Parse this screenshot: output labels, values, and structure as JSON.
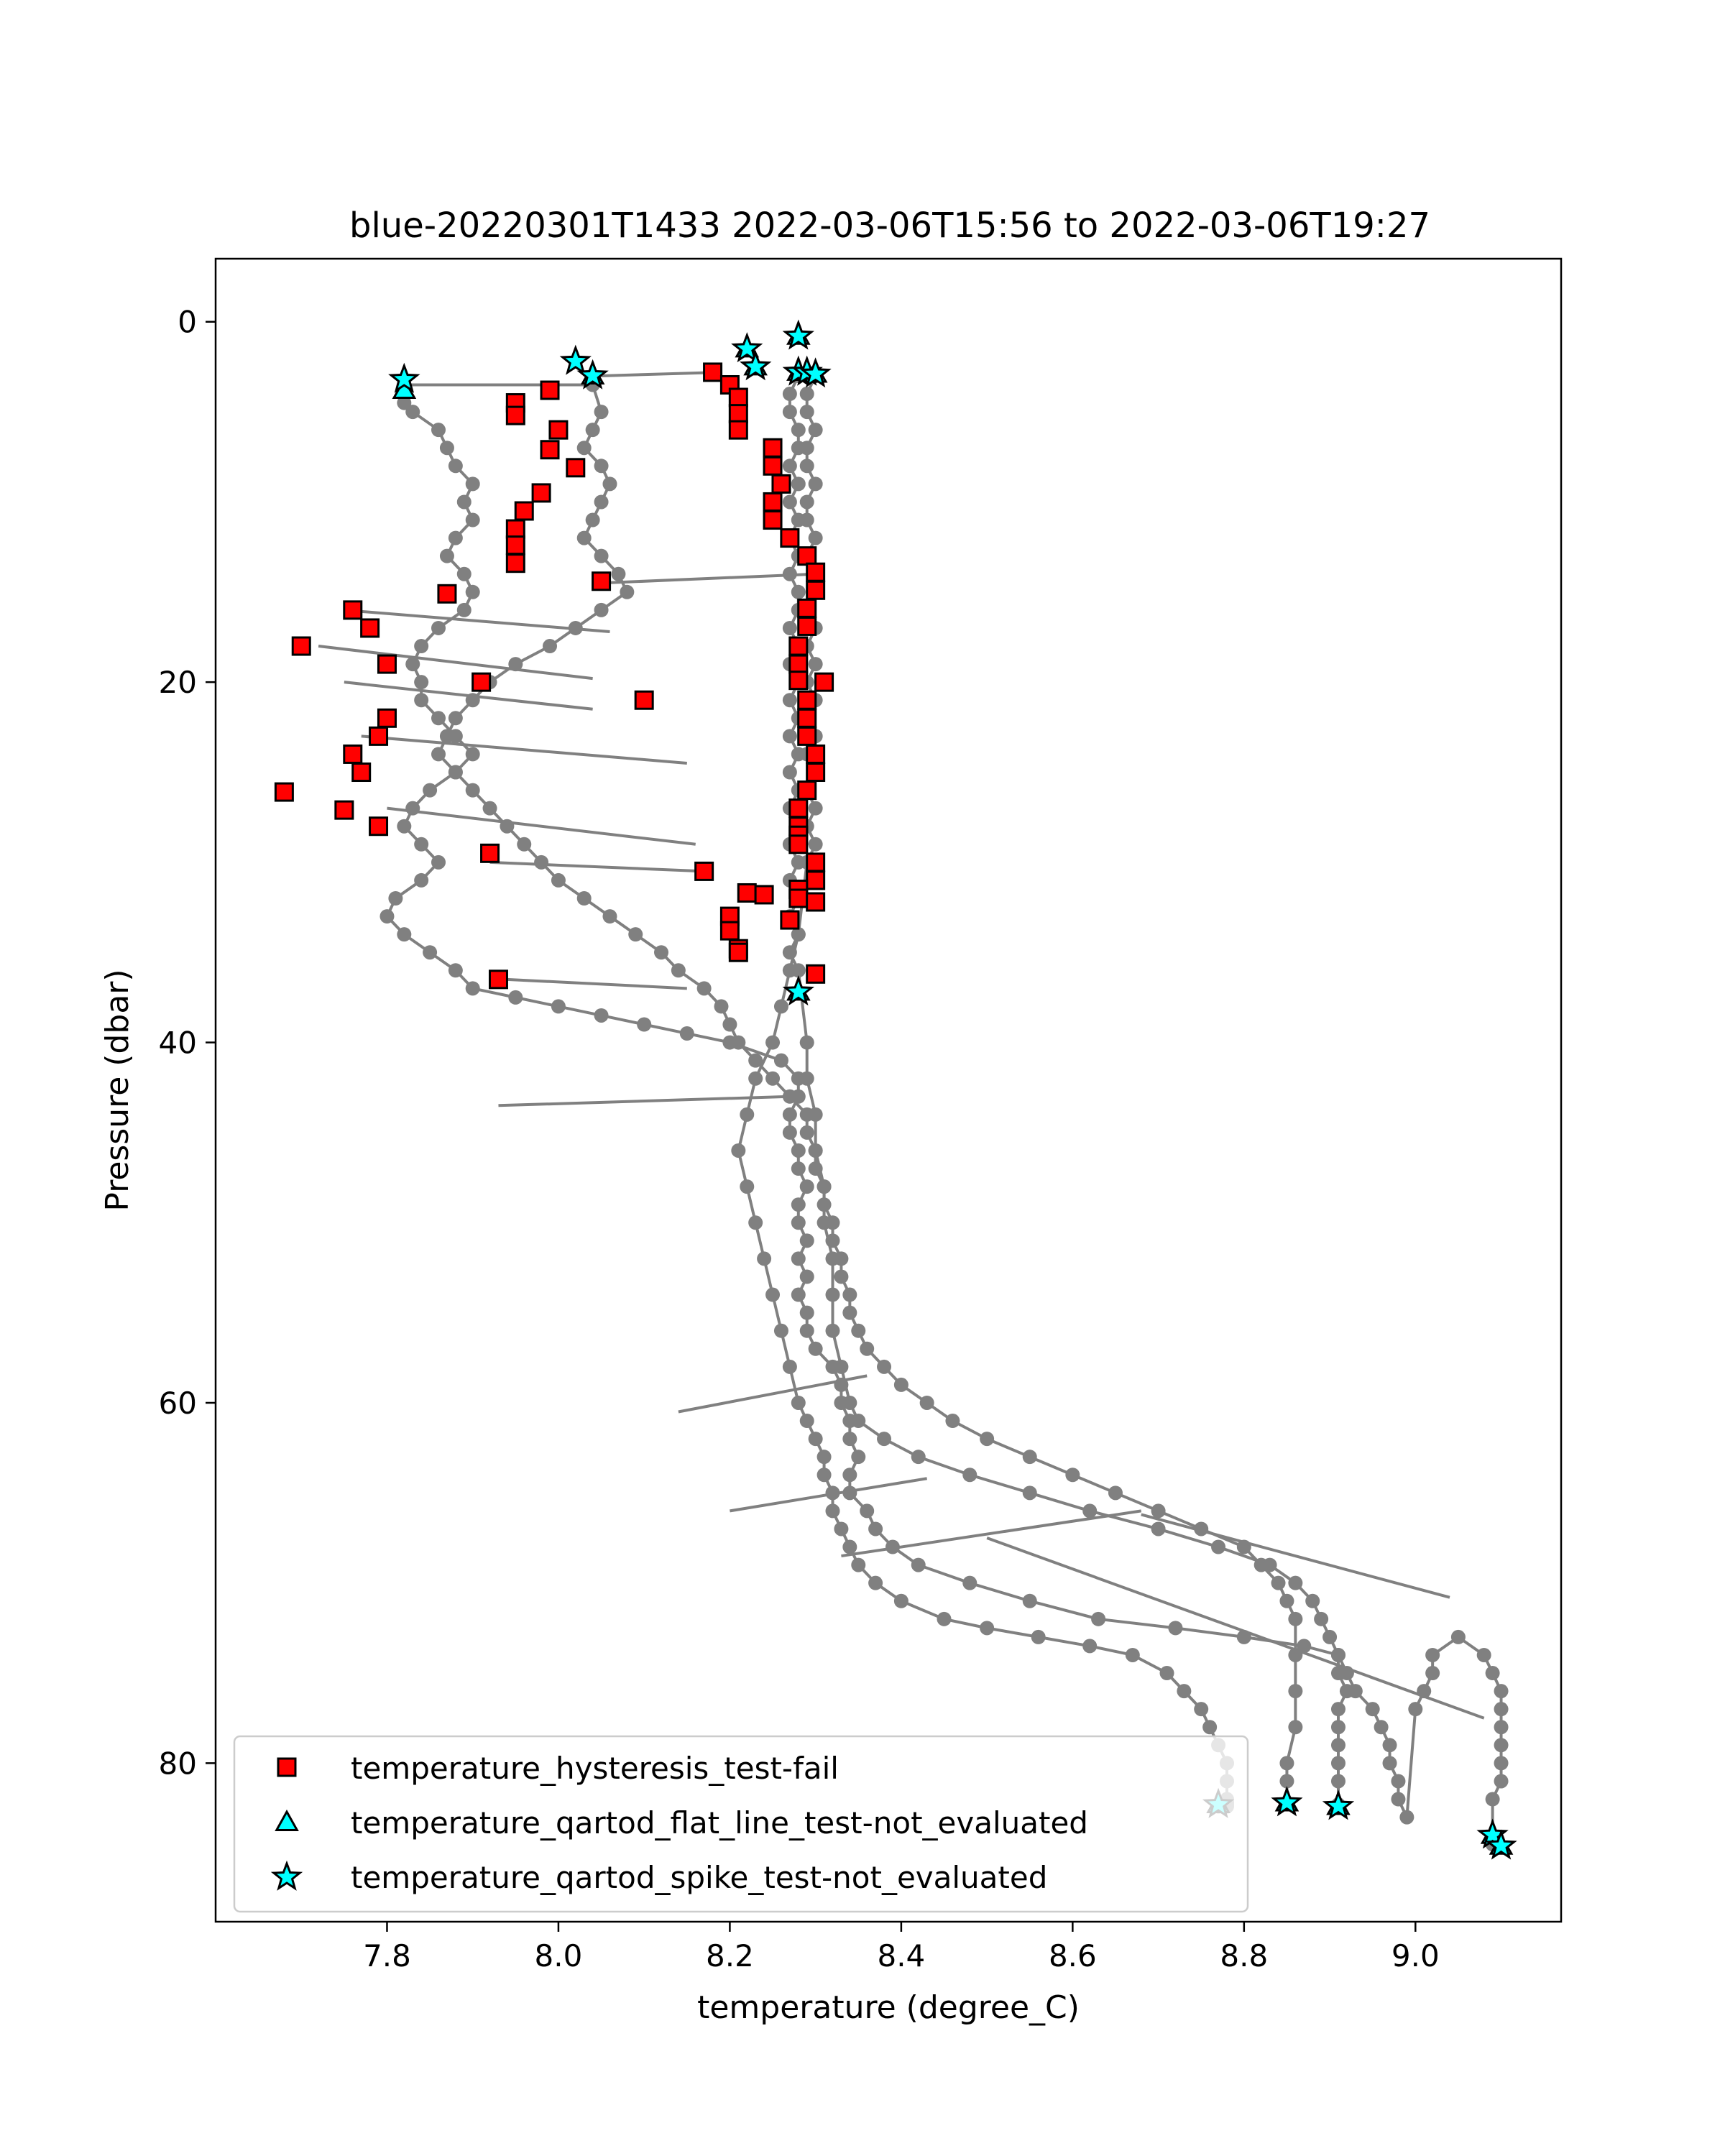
{
  "chart_data": {
    "type": "scatter",
    "title": "blue-20220301T1433 2022-03-06T15:56 to 2022-03-06T19:27",
    "xlabel": "temperature (degree_C)",
    "ylabel": "Pressure (dbar)",
    "xlim": [
      7.6,
      9.17
    ],
    "ylim": [
      88.8,
      -3.5
    ],
    "y_inverted": true,
    "xticks": [
      7.8,
      8.0,
      8.2,
      8.4,
      8.6,
      8.8,
      9.0
    ],
    "xtick_labels": [
      "7.8",
      "8.0",
      "8.2",
      "8.4",
      "8.6",
      "8.8",
      "9.0"
    ],
    "yticks": [
      0,
      20,
      40,
      60,
      80
    ],
    "ytick_labels": [
      "0",
      "20",
      "40",
      "60",
      "80"
    ],
    "legend_position": "lower-left",
    "grid": false,
    "colors": {
      "trace": "#808080",
      "hysteresis": "#ff0000",
      "qartod": "#00ffff",
      "edge": "#000000"
    },
    "legend": [
      {
        "label": "temperature_hysteresis_test-fail",
        "marker": "square",
        "color": "#ff0000"
      },
      {
        "label": "temperature_qartod_flat_line_test-not_evaluated",
        "marker": "triangle",
        "color": "#00ffff"
      },
      {
        "label": "temperature_qartod_spike_test-not_evaluated",
        "marker": "star",
        "color": "#00ffff"
      }
    ],
    "profiles": [
      {
        "x": [
          7.82,
          7.82,
          7.83,
          7.86,
          7.87,
          7.88,
          7.9,
          7.89,
          7.9,
          7.88,
          7.87,
          7.89,
          7.9,
          7.89,
          7.86,
          7.84,
          7.83,
          7.84,
          7.84,
          7.86,
          7.88,
          7.9,
          7.88,
          7.85,
          7.83,
          7.82,
          7.84,
          7.86,
          7.84,
          7.81,
          7.8,
          7.82,
          7.85,
          7.88,
          7.9,
          7.95,
          8.0,
          8.05,
          8.1,
          8.15,
          8.2,
          8.26,
          8.28,
          8.28,
          8.27,
          8.27,
          8.28,
          8.28,
          8.29,
          8.28,
          8.28,
          8.29,
          8.28,
          8.29,
          8.28,
          8.29,
          8.29,
          8.3,
          8.32,
          8.33,
          8.33,
          8.34,
          8.34,
          8.35,
          8.34,
          8.34,
          8.36,
          8.37,
          8.39,
          8.42,
          8.48,
          8.55,
          8.63,
          8.72,
          8.8,
          8.87,
          8.91,
          8.92,
          8.93,
          8.95,
          8.96,
          8.97,
          8.97,
          8.98,
          8.98,
          8.99,
          9.0,
          9.01,
          9.02,
          9.02,
          9.05,
          9.08,
          9.09,
          9.1,
          9.1,
          9.1,
          9.1,
          9.1,
          9.1,
          9.09,
          9.09
        ],
        "y": [
          3.5,
          4.5,
          5,
          6,
          7,
          8,
          9,
          10,
          11,
          12,
          13,
          14,
          15,
          16,
          17,
          18,
          19,
          20,
          21,
          22,
          23,
          24,
          25,
          26,
          27,
          28,
          29,
          30,
          31,
          32,
          33,
          34,
          35,
          36,
          37,
          37.5,
          38,
          38.5,
          39,
          39.5,
          40,
          41,
          42,
          43,
          44,
          45,
          46,
          47,
          48,
          49,
          50,
          51,
          52,
          53,
          54,
          55,
          56,
          57,
          58,
          59,
          60,
          61,
          62,
          63,
          64,
          65,
          66,
          67,
          68,
          69,
          70,
          71,
          72,
          72.5,
          73,
          73.5,
          74,
          75,
          76,
          77,
          78,
          79,
          80,
          81,
          82,
          83,
          77,
          76,
          75,
          74,
          73,
          74,
          75,
          76,
          77,
          78,
          79,
          80,
          81,
          82,
          84.5
        ]
      },
      {
        "x": [
          8.04,
          8.05,
          8.04,
          8.03,
          8.05,
          8.06,
          8.05,
          8.04,
          8.03,
          8.05,
          8.07,
          8.08,
          8.05,
          8.02,
          7.99,
          7.95,
          7.92,
          7.9,
          7.88,
          7.87,
          7.86,
          7.88,
          7.9,
          7.92,
          7.94,
          7.96,
          7.98,
          8.0,
          8.03,
          8.06,
          8.09,
          8.12,
          8.14,
          8.17,
          8.19,
          8.2,
          8.21,
          8.23,
          8.25,
          8.27,
          8.29,
          8.29,
          8.3,
          8.3,
          8.31,
          8.31,
          8.32,
          8.32,
          8.33,
          8.33,
          8.34,
          8.34,
          8.35,
          8.36,
          8.38,
          8.4,
          8.43,
          8.46,
          8.5,
          8.55,
          8.6,
          8.65,
          8.7,
          8.75,
          8.8,
          8.82,
          8.84,
          8.85,
          8.86,
          8.86,
          8.86,
          8.86,
          8.85,
          8.85,
          8.85
        ],
        "y": [
          3.5,
          5,
          6,
          7,
          8,
          9,
          10,
          11,
          12,
          13,
          14,
          15,
          16,
          17,
          18,
          19,
          20,
          21,
          22,
          23,
          24,
          25,
          26,
          27,
          28,
          29,
          30,
          31,
          32,
          33,
          34,
          35,
          36,
          37,
          38,
          39,
          40,
          41,
          42,
          43,
          44,
          45,
          46,
          47,
          48,
          49,
          50,
          51,
          52,
          53,
          54,
          55,
          56,
          57,
          58,
          59,
          60,
          61,
          62,
          63,
          64,
          65,
          66,
          67,
          68,
          69,
          70,
          71,
          72,
          74,
          76,
          78,
          80,
          81,
          82.2
        ]
      },
      {
        "x": [
          8.28,
          8.27,
          8.27,
          8.28,
          8.28,
          8.27,
          8.28,
          8.27,
          8.28,
          8.27,
          8.28,
          8.27,
          8.28,
          8.28,
          8.27,
          8.28,
          8.27,
          8.28,
          8.27,
          8.28,
          8.27,
          8.28,
          8.27,
          8.28,
          8.27,
          8.28,
          8.27,
          8.28,
          8.27,
          8.28,
          8.27,
          8.28,
          8.27,
          8.28,
          8.29,
          8.29,
          8.3,
          8.3,
          8.31,
          8.31,
          8.32,
          8.32,
          8.32,
          8.33,
          8.34,
          8.35,
          8.38,
          8.42,
          8.48,
          8.55,
          8.62,
          8.7,
          8.77,
          8.83,
          8.86,
          8.88,
          8.89,
          8.9,
          8.91,
          8.91,
          8.92,
          8.91,
          8.91,
          8.91,
          8.91,
          8.91,
          8.91
        ],
        "y": [
          3,
          4,
          5,
          6,
          7,
          8,
          9,
          10,
          11,
          12,
          13,
          14,
          15,
          16,
          17,
          18,
          19,
          20,
          21,
          22,
          23,
          24,
          25,
          26,
          27,
          28,
          29,
          30,
          31,
          32,
          33,
          34,
          35,
          36,
          40,
          42,
          44,
          46,
          48,
          50,
          52,
          54,
          56,
          58,
          60,
          61,
          62,
          63,
          64,
          65,
          66,
          67,
          68,
          69,
          70,
          71,
          72,
          73,
          74,
          75,
          76,
          77,
          78,
          79,
          80,
          81,
          82.3
        ]
      },
      {
        "x": [
          8.3,
          8.29,
          8.29,
          8.3,
          8.29,
          8.29,
          8.3,
          8.29,
          8.29,
          8.3,
          8.29,
          8.3,
          8.3,
          8.29,
          8.3,
          8.29,
          8.3,
          8.29,
          8.3,
          8.29,
          8.3,
          8.29,
          8.3,
          8.29,
          8.3,
          8.29,
          8.3,
          8.29,
          8.28,
          8.27,
          8.26,
          8.25,
          8.23,
          8.22,
          8.21,
          8.22,
          8.23,
          8.24,
          8.25,
          8.26,
          8.27,
          8.28,
          8.29,
          8.3,
          8.31,
          8.31,
          8.32,
          8.32,
          8.33,
          8.34,
          8.35,
          8.37,
          8.4,
          8.45,
          8.5,
          8.56,
          8.62,
          8.67,
          8.71,
          8.73,
          8.75,
          8.76,
          8.77,
          8.78,
          8.78,
          8.78,
          8.78,
          8.78,
          8.78,
          8.77
        ],
        "y": [
          3,
          4,
          5,
          6,
          7,
          8,
          9,
          10,
          11,
          12,
          13,
          14,
          15,
          16,
          17,
          18,
          19,
          20,
          21,
          22,
          23,
          24,
          25,
          26,
          27,
          28,
          29,
          30,
          34,
          36,
          38,
          40,
          42,
          44,
          46,
          48,
          50,
          52,
          54,
          56,
          58,
          60,
          61,
          62,
          63,
          64,
          65,
          66,
          67,
          68,
          69,
          70,
          71,
          72,
          72.5,
          73,
          73.5,
          74,
          75,
          76,
          77,
          78,
          79,
          80,
          81,
          82,
          82.2,
          82.3,
          82.4,
          82.4
        ]
      }
    ],
    "connectors": [
      {
        "x": [
          7.82,
          8.04
        ],
        "y": [
          3.5,
          3.5
        ]
      },
      {
        "x": [
          8.05,
          8.19
        ],
        "y": [
          3.0,
          2.8
        ]
      },
      {
        "x": [
          8.05,
          8.3
        ],
        "y": [
          14.5,
          14.0
        ]
      },
      {
        "x": [
          7.75,
          8.06
        ],
        "y": [
          16.0,
          17.2
        ]
      },
      {
        "x": [
          7.72,
          8.04
        ],
        "y": [
          18.0,
          19.8
        ]
      },
      {
        "x": [
          7.75,
          8.04
        ],
        "y": [
          20.0,
          21.5
        ]
      },
      {
        "x": [
          7.77,
          8.15
        ],
        "y": [
          23.0,
          24.5
        ]
      },
      {
        "x": [
          7.8,
          8.16
        ],
        "y": [
          27.0,
          29.0
        ]
      },
      {
        "x": [
          7.92,
          8.17
        ],
        "y": [
          30.0,
          30.5
        ]
      },
      {
        "x": [
          7.94,
          8.15
        ],
        "y": [
          36.5,
          37.0
        ]
      },
      {
        "x": [
          7.93,
          8.27
        ],
        "y": [
          43.5,
          43.0
        ]
      },
      {
        "x": [
          8.14,
          8.36
        ],
        "y": [
          60.5,
          58.5
        ]
      },
      {
        "x": [
          8.2,
          8.43
        ],
        "y": [
          66.0,
          64.2
        ]
      },
      {
        "x": [
          8.33,
          8.68
        ],
        "y": [
          68.5,
          66.0
        ]
      },
      {
        "x": [
          8.68,
          9.04
        ],
        "y": [
          66.2,
          70.8
        ]
      },
      {
        "x": [
          8.5,
          9.08
        ],
        "y": [
          67.5,
          77.5
        ]
      }
    ],
    "hysteresis_fail": {
      "x": [
        7.99,
        7.95,
        7.95,
        8.0,
        7.99,
        8.02,
        7.98,
        7.96,
        7.95,
        7.95,
        7.95,
        8.05,
        7.87,
        7.76,
        7.78,
        7.7,
        7.8,
        7.91,
        8.1,
        7.8,
        7.79,
        7.76,
        7.77,
        7.68,
        7.75,
        7.79,
        7.92,
        7.93,
        8.18,
        8.2,
        8.21,
        8.21,
        8.21,
        8.25,
        8.25,
        8.26,
        8.25,
        8.25,
        8.27,
        8.29,
        8.3,
        8.3,
        8.29,
        8.29,
        8.28,
        8.28,
        8.28,
        8.31,
        8.29,
        8.29,
        8.29,
        8.3,
        8.3,
        8.29,
        8.28,
        8.28,
        8.28,
        8.28,
        8.3,
        8.3,
        8.28,
        8.28,
        8.3,
        8.2,
        8.22,
        8.21,
        8.2,
        8.21,
        8.27,
        8.17,
        8.24,
        8.3
      ],
      "y": [
        3.8,
        4.5,
        5.2,
        6.0,
        7.1,
        8.1,
        9.5,
        10.5,
        11.5,
        12.4,
        13.4,
        14.4,
        15.1,
        16.0,
        17.0,
        18.0,
        19.0,
        20.0,
        21.0,
        22.0,
        23.0,
        24.0,
        25.0,
        26.1,
        27.1,
        28.0,
        29.5,
        36.5,
        2.8,
        3.5,
        4.2,
        5.1,
        6.0,
        7.0,
        8.0,
        9.0,
        10.0,
        11.0,
        12.0,
        13.0,
        13.9,
        14.9,
        15.9,
        16.9,
        18.0,
        19.0,
        19.9,
        20.0,
        21.0,
        22.0,
        23.0,
        24.0,
        25.0,
        26.0,
        27.0,
        28.0,
        28.5,
        29.0,
        30.0,
        31.0,
        31.5,
        32.0,
        32.2,
        33.0,
        31.7,
        34.8,
        33.8,
        35.0,
        33.2,
        30.5,
        31.8,
        36.2
      ]
    },
    "flat_line_not_evaluated": {
      "x": [
        7.82,
        8.04,
        8.22,
        8.23,
        8.28,
        8.28,
        8.29,
        8.3,
        8.28,
        8.77,
        8.85,
        8.91,
        9.09,
        9.1
      ],
      "y": [
        3.8,
        3.0,
        1.5,
        2.5,
        0.8,
        2.8,
        2.8,
        2.9,
        37.2,
        82.3,
        82.2,
        82.4,
        84.0,
        84.6
      ]
    },
    "spike_not_evaluated": {
      "x": [
        7.82,
        8.02,
        8.04,
        8.22,
        8.23,
        8.28,
        8.28,
        8.29,
        8.3,
        8.28,
        8.77,
        8.85,
        8.91,
        9.09,
        9.1
      ],
      "y": [
        3.2,
        2.2,
        3.0,
        1.5,
        2.5,
        0.8,
        2.8,
        2.8,
        2.9,
        37.2,
        82.3,
        82.2,
        82.4,
        84.0,
        84.6
      ]
    }
  }
}
